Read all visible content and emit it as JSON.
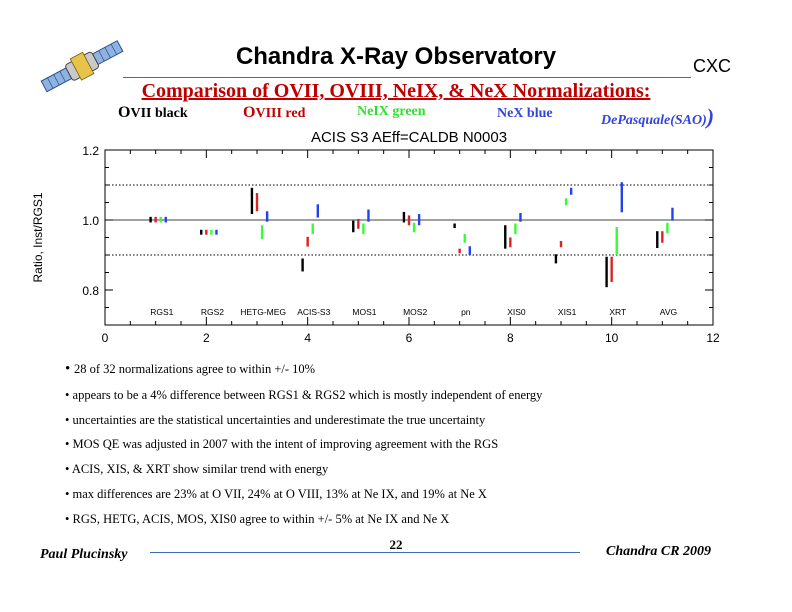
{
  "header": {
    "title": "Chandra X-Ray Observatory",
    "org": "CXC",
    "subtitle": "Comparison of OVII, OVIII, NeIX, & NeX Normalizations:"
  },
  "legend": {
    "ovii_cap": "O",
    "ovii_rest": "VII black",
    "oviii_cap": "O",
    "oviii_rest": "VIII red",
    "neix": "NeIX green",
    "nex": "NeX blue",
    "credit": "DePasquale(SAO)",
    "credit_paren": ")"
  },
  "colors": {
    "ovii": "#000000",
    "oviii": "#dd2222",
    "neix": "#33ff33",
    "nex": "#2244ee",
    "accent_title": "#c00000",
    "rule": "#3b6fb0"
  },
  "chart_data": {
    "type": "scatter",
    "title": "ACIS S3 AEff=CALDB N0003",
    "xlabel": "",
    "ylabel": "Ratio, Inst/RGS1",
    "xlim": [
      0,
      12
    ],
    "ylim": [
      0.7,
      1.2
    ],
    "xticks": [
      0,
      2,
      4,
      6,
      8,
      10,
      12
    ],
    "yticks": [
      0.8,
      1.0,
      1.2
    ],
    "ytick_labels": [
      "0.8",
      "1.0",
      "1.2"
    ],
    "reference_lines": [
      0.9,
      1.0,
      1.1
    ],
    "grid": false,
    "instruments": [
      {
        "name": "RGS1",
        "x": 1.2
      },
      {
        "name": "RGS2",
        "x": 2.2
      },
      {
        "name": "HETG-MEG",
        "x": 3.2
      },
      {
        "name": "ACIS-S3",
        "x": 4.2
      },
      {
        "name": "MOS1",
        "x": 5.2
      },
      {
        "name": "MOS2",
        "x": 6.2
      },
      {
        "name": "pn",
        "x": 7.2
      },
      {
        "name": "XIS0",
        "x": 8.2
      },
      {
        "name": "XIS1",
        "x": 9.2
      },
      {
        "name": "XRT",
        "x": 10.2
      },
      {
        "name": "AVG",
        "x": 11.2
      }
    ],
    "series": [
      {
        "name": "OVII",
        "color": "#000000",
        "x": [
          0.9,
          1.9,
          2.9,
          3.9,
          4.9,
          5.9,
          6.9,
          7.9,
          8.9,
          9.9,
          10.9
        ],
        "lo": [
          0.993,
          0.958,
          1.017,
          0.853,
          0.965,
          0.993,
          0.977,
          0.918,
          0.876,
          0.808,
          0.92
        ],
        "hi": [
          1.009,
          0.972,
          1.092,
          0.89,
          0.998,
          1.023,
          0.99,
          0.985,
          0.902,
          0.895,
          0.968
        ]
      },
      {
        "name": "OVIII",
        "color": "#dd2222",
        "x": [
          1.0,
          2.0,
          3.0,
          4.0,
          5.0,
          6.0,
          7.0,
          8.0,
          9.0,
          10.0,
          11.0
        ],
        "lo": [
          0.993,
          0.958,
          1.025,
          0.924,
          0.975,
          0.985,
          0.905,
          0.922,
          0.922,
          0.823,
          0.935
        ],
        "hi": [
          1.009,
          0.972,
          1.077,
          0.952,
          1.003,
          1.013,
          0.918,
          0.95,
          0.94,
          0.895,
          0.968
        ]
      },
      {
        "name": "NeIX",
        "color": "#33ff33",
        "x": [
          1.1,
          2.1,
          3.1,
          4.1,
          5.1,
          6.1,
          7.1,
          8.1,
          9.1,
          10.1,
          11.1
        ],
        "lo": [
          0.993,
          0.958,
          0.945,
          0.96,
          0.96,
          0.965,
          0.935,
          0.96,
          1.042,
          0.9,
          0.962
        ],
        "hi": [
          1.009,
          0.972,
          0.985,
          0.99,
          0.99,
          0.992,
          0.96,
          0.99,
          1.062,
          0.98,
          0.992
        ]
      },
      {
        "name": "NeX",
        "color": "#2244ee",
        "x": [
          1.2,
          2.2,
          3.2,
          4.2,
          5.2,
          6.2,
          7.2,
          8.2,
          9.2,
          10.2,
          11.2
        ],
        "lo": [
          0.993,
          0.958,
          0.995,
          1.007,
          0.995,
          0.985,
          0.9,
          0.995,
          1.072,
          1.022,
          0.998
        ],
        "hi": [
          1.009,
          0.972,
          1.025,
          1.045,
          1.03,
          1.017,
          0.925,
          1.02,
          1.092,
          1.108,
          1.035
        ]
      }
    ]
  },
  "bullets": [
    "28 of 32 normalizations agree to within +/- 10%",
    "appears to be a 4%  difference between RGS1 & RGS2 which is mostly independent of energy",
    " uncertainties are the statistical uncertainties and underestimate the true uncertainty",
    "MOS QE was adjusted in 2007 with the intent of improving agreement with the RGS",
    "ACIS, XIS, & XRT show similar trend with energy",
    "max differences are 23% at O VII, 24% at O VIII, 13% at Ne IX, and 19% at Ne X",
    "RGS, HETG, ACIS, MOS, XIS0 agree to within +/- 5% at Ne IX and Ne X"
  ],
  "footer": {
    "author": "Paul Plucinsky",
    "page": "22",
    "conference": "Chandra CR 2009"
  }
}
